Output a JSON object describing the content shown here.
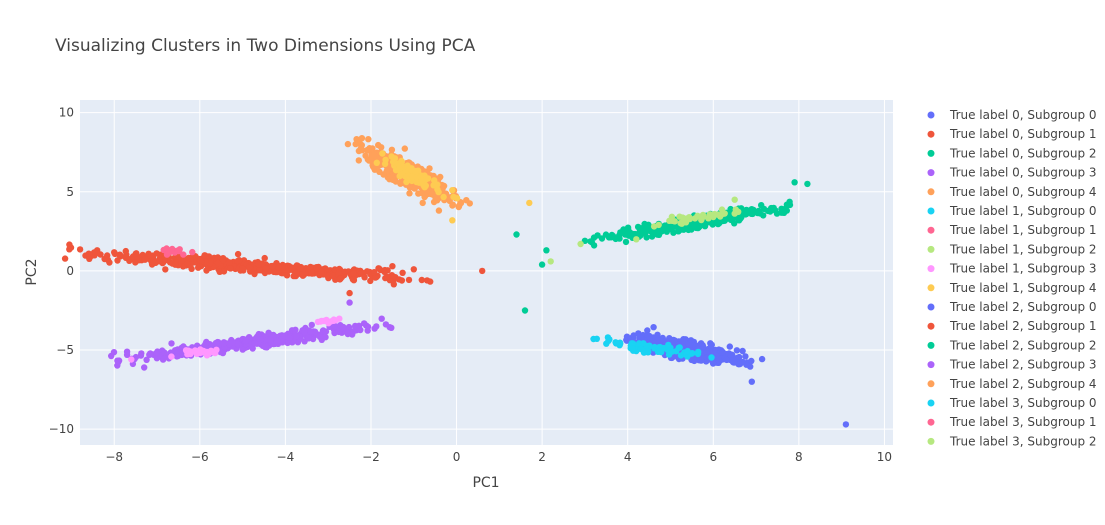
{
  "chart_data": {
    "type": "scatter",
    "title": "Visualizing Clusters in Two Dimensions Using PCA",
    "xlabel": "PC1",
    "ylabel": "PC2",
    "xlim": [
      -8.8,
      10.2
    ],
    "ylim": [
      -11.0,
      10.8
    ],
    "xticks": [
      -8,
      -6,
      -4,
      -2,
      0,
      2,
      4,
      6,
      8,
      10
    ],
    "xtick_labels": [
      "−8",
      "−6",
      "−4",
      "−2",
      "0",
      "2",
      "4",
      "6",
      "8",
      "10"
    ],
    "yticks": [
      -10,
      -5,
      0,
      5,
      10
    ],
    "ytick_labels": [
      "−10",
      "−5",
      "0",
      "5",
      "10"
    ],
    "grid": true,
    "legend_position": "right",
    "plot_background": "#e5ecf6",
    "series": [
      {
        "name": "True label 0, Subgroup 0",
        "color": "#636efa",
        "clusters": []
      },
      {
        "name": "True label 0, Subgroup 1",
        "color": "#ef553b",
        "clusters": [
          {
            "center": [
              -4.9,
              0.3
            ],
            "slope": -0.22,
            "length": 8.8,
            "width": 0.55,
            "n": 500
          },
          {
            "center": [
              -1.8,
              0.0
            ],
            "slope": 0.0,
            "length": 0.8,
            "width": 0.3,
            "n": 8
          }
        ],
        "points": [
          [
            0.6,
            0.0
          ],
          [
            -2.5,
            -1.4
          ],
          [
            -1.5,
            0.3
          ],
          [
            -1.0,
            0.1
          ]
        ]
      },
      {
        "name": "True label 0, Subgroup 2",
        "color": "#00cc96",
        "clusters": [
          {
            "center": [
              5.5,
              3.0
            ],
            "slope": 0.5,
            "length": 5.5,
            "width": 0.5,
            "n": 350
          }
        ],
        "points": [
          [
            1.4,
            2.3
          ],
          [
            2.1,
            1.3
          ],
          [
            2.0,
            0.4
          ],
          [
            1.6,
            -2.5
          ],
          [
            3.0,
            1.9
          ],
          [
            7.9,
            5.6
          ],
          [
            8.2,
            5.5
          ]
        ]
      },
      {
        "name": "True label 0, Subgroup 3",
        "color": "#ab63fa",
        "clusters": [
          {
            "center": [
              -4.8,
              -4.5
            ],
            "slope": 0.36,
            "length": 7.0,
            "width": 0.5,
            "n": 450
          }
        ],
        "points": [
          [
            -7.7,
            -5.3
          ],
          [
            -7.3,
            -6.1
          ],
          [
            -2.5,
            -2.0
          ]
        ]
      },
      {
        "name": "True label 0, Subgroup 4",
        "color": "#ffa15a",
        "clusters": [
          {
            "center": [
              -1.2,
              6.2
            ],
            "slope": -1.8,
            "length": 5.0,
            "width": 0.7,
            "n": 350
          }
        ]
      },
      {
        "name": "True label 1, Subgroup 0",
        "color": "#19d3f3",
        "clusters": []
      },
      {
        "name": "True label 1, Subgroup 1",
        "color": "#ff6692",
        "clusters": [
          {
            "center": [
              -6.6,
              1.2
            ],
            "slope": -0.1,
            "length": 1.0,
            "width": 0.3,
            "n": 15
          }
        ]
      },
      {
        "name": "True label 1, Subgroup 2",
        "color": "#b6e880",
        "clusters": [],
        "points": [
          [
            2.2,
            0.6
          ],
          [
            2.9,
            1.7
          ],
          [
            4.2,
            2.0
          ],
          [
            6.5,
            4.5
          ]
        ]
      },
      {
        "name": "True label 1, Subgroup 3",
        "color": "#ff97ff",
        "clusters": [
          {
            "center": [
              -6.0,
              -5.1
            ],
            "slope": 0.2,
            "length": 1.5,
            "width": 0.3,
            "n": 25
          },
          {
            "center": [
              -3.0,
              -3.2
            ],
            "slope": 0.3,
            "length": 1.2,
            "width": 0.3,
            "n": 12
          }
        ],
        "points": [
          [
            -7.6,
            -5.6
          ]
        ]
      },
      {
        "name": "True label 1, Subgroup 4",
        "color": "#fecb52",
        "clusters": [
          {
            "center": [
              -1.0,
              6.0
            ],
            "slope": -1.8,
            "length": 3.5,
            "width": 0.5,
            "n": 80
          }
        ],
        "points": [
          [
            1.7,
            4.3
          ],
          [
            -0.1,
            5.1
          ],
          [
            -0.1,
            3.2
          ]
        ]
      },
      {
        "name": "True label 2, Subgroup 0",
        "color": "#636efa",
        "clusters": [
          {
            "center": [
              5.4,
              -5.0
            ],
            "slope": -0.6,
            "length": 3.6,
            "width": 0.7,
            "n": 400
          }
        ],
        "points": [
          [
            9.1,
            -9.7
          ],
          [
            6.9,
            -7.0
          ]
        ]
      },
      {
        "name": "True label 2, Subgroup 1",
        "color": "#ef553b",
        "clusters": []
      },
      {
        "name": "True label 2, Subgroup 2",
        "color": "#00cc96",
        "clusters": []
      },
      {
        "name": "True label 2, Subgroup 3",
        "color": "#ab63fa",
        "clusters": []
      },
      {
        "name": "True label 2, Subgroup 4",
        "color": "#ffa15a",
        "clusters": []
      },
      {
        "name": "True label 3, Subgroup 0",
        "color": "#19d3f3",
        "clusters": [
          {
            "center": [
              4.6,
              -4.9
            ],
            "slope": -0.4,
            "length": 3.6,
            "width": 0.5,
            "n": 60
          }
        ],
        "points": [
          [
            3.2,
            -4.3
          ],
          [
            3.5,
            -4.6
          ]
        ]
      },
      {
        "name": "True label 3, Subgroup 1",
        "color": "#ff6692",
        "clusters": []
      },
      {
        "name": "True label 3, Subgroup 2",
        "color": "#b6e880",
        "clusters": [
          {
            "center": [
              5.6,
              3.4
            ],
            "slope": 0.45,
            "length": 3.0,
            "width": 0.3,
            "n": 40
          }
        ]
      }
    ]
  }
}
